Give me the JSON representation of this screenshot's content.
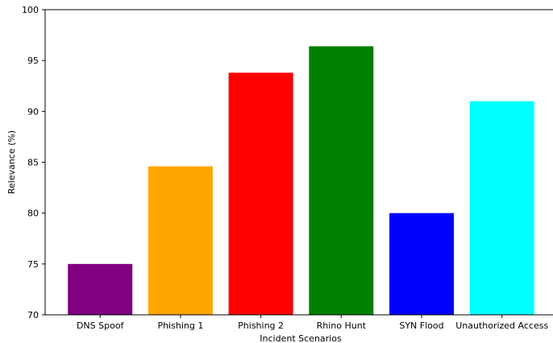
{
  "chart_data": {
    "type": "bar",
    "title": "",
    "xlabel": "Incident Scenarios",
    "ylabel": "Relevance (%)",
    "categories": [
      "DNS Spoof",
      "Phishing 1",
      "Phishing 2",
      "Rhino Hunt",
      "SYN Flood",
      "Unauthorized Access"
    ],
    "values": [
      75,
      84.6,
      93.8,
      96.4,
      80,
      91
    ],
    "colors": [
      "#800080",
      "#FFA500",
      "#FF0000",
      "#008000",
      "#0000FF",
      "#00FFFF"
    ],
    "ylim": [
      70,
      100
    ],
    "yticks": [
      70,
      75,
      80,
      85,
      90,
      95,
      100
    ],
    "grid": false,
    "legend": "none"
  }
}
